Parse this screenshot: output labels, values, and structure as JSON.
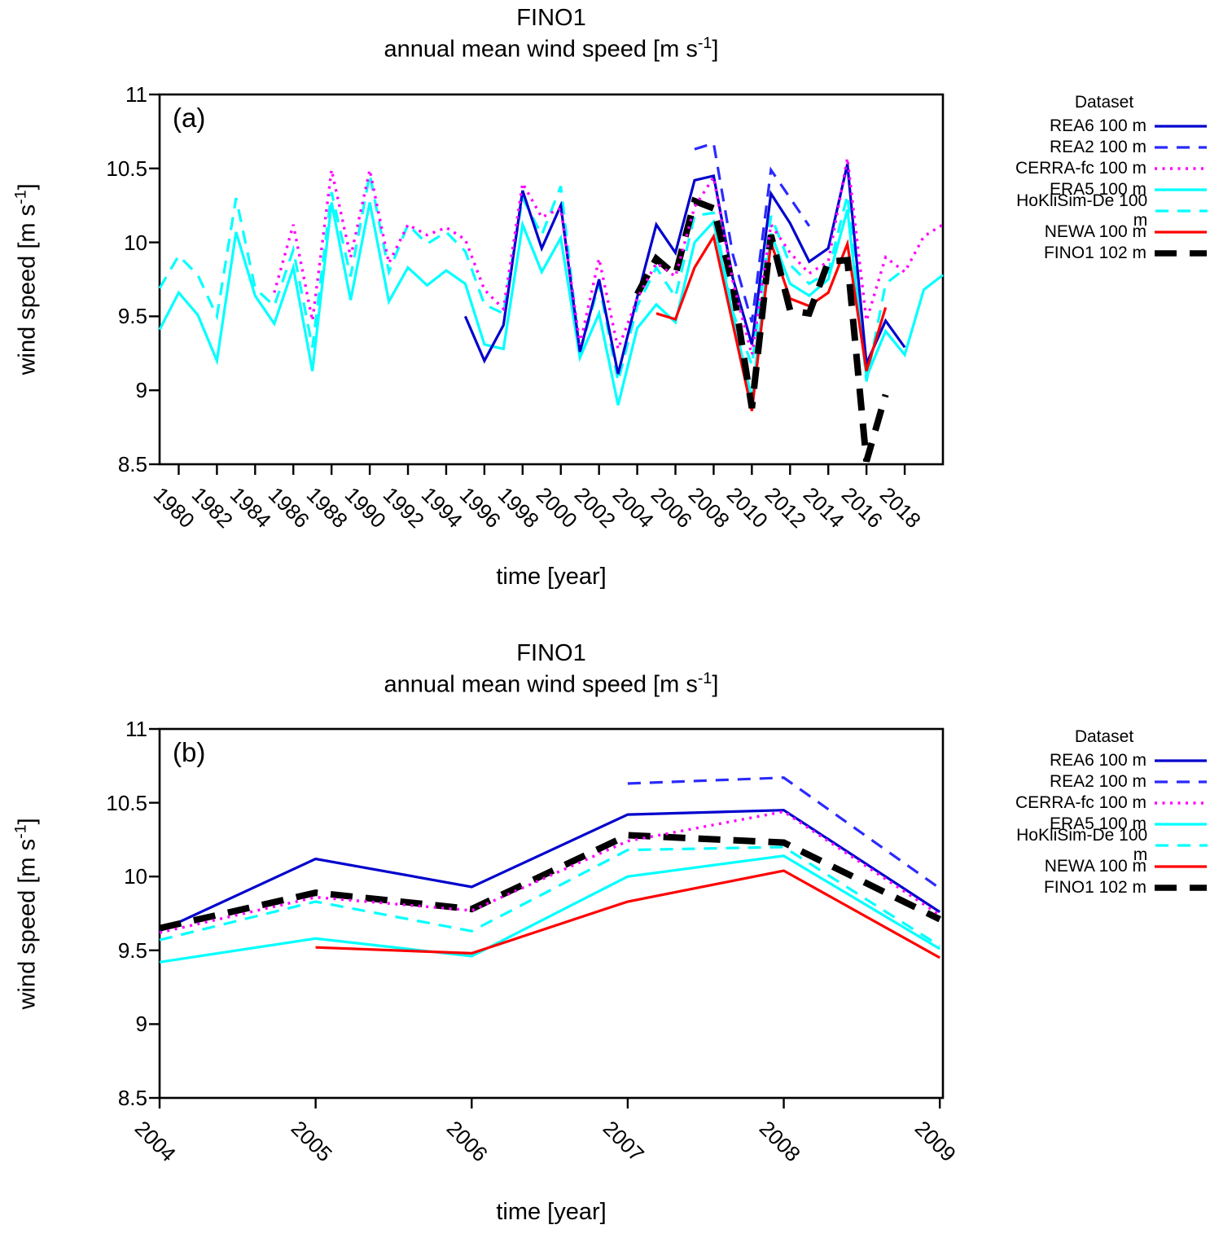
{
  "chart_data": [
    {
      "id": "a",
      "type": "line",
      "panel_letter": "(a)",
      "title": "FINO1",
      "subtitle_pre": "annual mean wind speed [m s",
      "subtitle_sup": "-1",
      "subtitle_post": "]",
      "xlabel": "time [year]",
      "ylabel_pre": "wind speed [m s",
      "ylabel_sup": "-1",
      "ylabel_post": "]",
      "xlim": [
        1979,
        2020
      ],
      "ylim": [
        8.5,
        11
      ],
      "grid": "off",
      "legend_position": "right",
      "legend_title": "Dataset",
      "xticks": [
        1980,
        1982,
        1984,
        1986,
        1988,
        1990,
        1992,
        1994,
        1996,
        1998,
        2000,
        2002,
        2004,
        2006,
        2008,
        2010,
        2012,
        2014,
        2016,
        2018
      ],
      "ytick_labels": [
        "8.5",
        "9",
        "9.5",
        "10",
        "10.5",
        "11"
      ],
      "series": [
        {
          "name": "REA6 100 m",
          "color": "#0000cd",
          "dash": "solid",
          "width": 3.2,
          "z": 3,
          "start_year": 1995,
          "values": [
            9.5,
            9.2,
            9.44,
            10.35,
            9.96,
            10.25,
            9.26,
            9.75,
            9.11,
            9.63,
            10.12,
            9.93,
            10.42,
            10.45,
            9.76,
            9.31,
            10.33,
            10.13,
            9.87,
            9.96,
            10.53,
            9.18,
            9.47,
            9.29
          ]
        },
        {
          "name": "REA2 100 m",
          "color": "#2a2aff",
          "dash": "dashed",
          "width": 3.2,
          "z": 7,
          "start_year": 2007,
          "values": [
            10.63,
            10.67,
            9.92,
            9.46,
            10.49,
            10.3,
            10.11
          ]
        },
        {
          "name": "CERRA-fc 100 m",
          "color": "#ff00ff",
          "dash": "dotted",
          "width": 3.4,
          "z": 6,
          "start_year": 1985,
          "values": [
            9.66,
            10.12,
            9.47,
            10.49,
            9.9,
            10.49,
            9.86,
            10.12,
            10.05,
            10.1,
            10.02,
            9.68,
            9.55,
            10.4,
            10.17,
            10.23,
            9.31,
            9.89,
            9.28,
            9.62,
            9.86,
            9.77,
            10.24,
            10.44,
            9.74,
            9.24,
            10.12,
            9.93,
            9.79,
            9.87,
            10.57,
            9.47,
            9.9,
            9.8,
            10.04,
            10.12
          ]
        },
        {
          "name": "ERA5 100 m",
          "color": "#00ffff",
          "dash": "solid",
          "width": 3.2,
          "z": 1,
          "start_year": 1979,
          "values": [
            9.41,
            9.66,
            9.51,
            9.2,
            10.07,
            9.64,
            9.45,
            9.83,
            9.13,
            10.27,
            9.61,
            10.27,
            9.6,
            9.83,
            9.71,
            9.81,
            9.72,
            9.31,
            9.28,
            10.12,
            9.8,
            10.03,
            9.22,
            9.52,
            8.9,
            9.42,
            9.58,
            9.46,
            10.0,
            10.14,
            9.51,
            8.94,
            10.06,
            9.72,
            9.64,
            9.75,
            10.22,
            9.09,
            9.4,
            9.24,
            9.68,
            9.78
          ]
        },
        {
          "name": "HoKliSim-De 100 m",
          "color": "#00ffff",
          "dash": "dashed",
          "width": 3.2,
          "z": 2,
          "start_year": 1979,
          "values": [
            9.69,
            9.91,
            9.78,
            9.5,
            10.3,
            9.69,
            9.57,
            9.95,
            9.29,
            10.34,
            9.77,
            10.46,
            9.8,
            10.12,
            9.99,
            10.07,
            9.94,
            9.58,
            9.52,
            10.3,
            10.05,
            10.38,
            9.25,
            9.72,
            9.06,
            9.57,
            9.83,
            9.63,
            10.18,
            10.2,
            9.53,
            9.17,
            10.18,
            9.85,
            9.72,
            9.8,
            10.32,
            9.06,
            9.72,
            9.82
          ]
        },
        {
          "name": "NEWA 100 m",
          "color": "#ff0000",
          "dash": "solid",
          "width": 3.2,
          "z": 4,
          "start_year": 2005,
          "values": [
            9.52,
            9.48,
            9.83,
            10.04,
            9.45,
            8.86,
            10.0,
            9.62,
            9.57,
            9.66,
            9.99,
            9.13,
            9.56
          ]
        },
        {
          "name": "FINO1 102 m",
          "color": "#000000",
          "dash": "heavy-dash",
          "width": 8,
          "z": 5,
          "start_year": 2004,
          "values": [
            9.65,
            9.89,
            9.78,
            10.28,
            10.23,
            9.71,
            8.88,
            10.05,
            9.54,
            9.52,
            9.87,
            9.88,
            8.52,
            8.97
          ]
        }
      ]
    },
    {
      "id": "b",
      "type": "line",
      "panel_letter": "(b)",
      "title": "FINO1",
      "subtitle_pre": "annual mean wind speed [m s",
      "subtitle_sup": "-1",
      "subtitle_post": "]",
      "xlabel": "time [year]",
      "ylabel_pre": "wind speed [m s",
      "ylabel_sup": "-1",
      "ylabel_post": "]",
      "xlim": [
        2004,
        2009.02
      ],
      "ylim": [
        8.5,
        11
      ],
      "grid": "off",
      "legend_position": "right",
      "legend_title": "Dataset",
      "xticks": [
        2004,
        2005,
        2006,
        2007,
        2008,
        2009
      ],
      "ytick_labels": [
        "8.5",
        "9",
        "9.5",
        "10",
        "10.5",
        "11"
      ],
      "series": [
        {
          "name": "REA6 100 m",
          "color": "#0000cd",
          "dash": "solid",
          "width": 3.2,
          "z": 3,
          "start_year": 2004,
          "values": [
            9.63,
            10.12,
            9.93,
            10.42,
            10.45,
            9.76
          ]
        },
        {
          "name": "REA2 100 m",
          "color": "#2a2aff",
          "dash": "dashed",
          "width": 3.2,
          "z": 7,
          "start_year": 2007,
          "values": [
            10.63,
            10.67,
            9.92
          ]
        },
        {
          "name": "CERRA-fc 100 m",
          "color": "#ff00ff",
          "dash": "dotted",
          "width": 3.4,
          "z": 6,
          "start_year": 2004,
          "values": [
            9.62,
            9.86,
            9.77,
            10.24,
            10.44,
            9.74
          ]
        },
        {
          "name": "ERA5 100 m",
          "color": "#00ffff",
          "dash": "solid",
          "width": 3.2,
          "z": 1,
          "start_year": 2004,
          "values": [
            9.42,
            9.58,
            9.46,
            10.0,
            10.14,
            9.51
          ]
        },
        {
          "name": "HoKliSim-De 100 m",
          "color": "#00ffff",
          "dash": "dashed",
          "width": 3.2,
          "z": 2,
          "start_year": 2004,
          "values": [
            9.57,
            9.83,
            9.63,
            10.18,
            10.2,
            9.53
          ]
        },
        {
          "name": "NEWA 100 m",
          "color": "#ff0000",
          "dash": "solid",
          "width": 3.2,
          "z": 4,
          "start_year": 2005,
          "values": [
            9.52,
            9.48,
            9.83,
            10.04,
            9.45
          ]
        },
        {
          "name": "FINO1 102 m",
          "color": "#000000",
          "dash": "heavy-dash",
          "width": 8,
          "z": 5,
          "start_year": 2004,
          "values": [
            9.65,
            9.89,
            9.78,
            10.28,
            10.23,
            9.71
          ]
        }
      ]
    }
  ]
}
